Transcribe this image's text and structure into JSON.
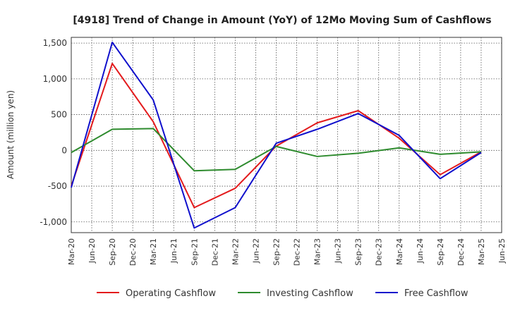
{
  "chart_data": {
    "type": "line",
    "title": "[4918]  Trend of Change in Amount (YoY) of 12Mo Moving Sum of Cashflows",
    "xlabel": "",
    "ylabel": "Amount (million yen)",
    "ylim": [
      -1150,
      1580
    ],
    "yticks": [
      1500,
      1000,
      500,
      0,
      -500,
      -1000
    ],
    "ytick_labels": [
      "1,500",
      "1,000",
      "500",
      "0",
      "-500",
      "-1,000"
    ],
    "categories": [
      "Mar-20",
      "Jun-20",
      "Sep-20",
      "Dec-20",
      "Mar-21",
      "Jun-21",
      "Sep-21",
      "Dec-21",
      "Mar-22",
      "Jun-22",
      "Sep-22",
      "Dec-22",
      "Mar-23",
      "Jun-23",
      "Sep-23",
      "Dec-23",
      "Mar-24",
      "Jun-24",
      "Sep-24",
      "Dec-24",
      "Mar-25",
      "Jun-25"
    ],
    "grid": true,
    "legend_position": "bottom",
    "series": [
      {
        "name": "Operating Cashflow",
        "color": "#e31a1c",
        "values": [
          -500,
          null,
          1215,
          null,
          400,
          null,
          -800,
          null,
          -530,
          null,
          60,
          null,
          385,
          null,
          555,
          null,
          170,
          null,
          -340,
          null,
          -20,
          null
        ]
      },
      {
        "name": "Investing Cashflow",
        "color": "#2e8b2e",
        "values": [
          -30,
          null,
          295,
          null,
          305,
          null,
          -285,
          null,
          -265,
          null,
          55,
          null,
          -85,
          null,
          -40,
          null,
          35,
          null,
          -55,
          null,
          -20,
          null
        ]
      },
      {
        "name": "Free Cashflow",
        "color": "#1010cc",
        "values": [
          -520,
          null,
          1510,
          null,
          705,
          null,
          -1085,
          null,
          -800,
          null,
          100,
          null,
          295,
          null,
          515,
          null,
          210,
          null,
          -395,
          null,
          -30,
          null
        ]
      }
    ]
  }
}
